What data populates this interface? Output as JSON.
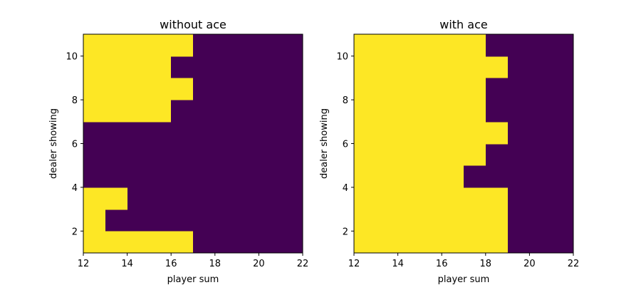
{
  "colors": {
    "stand": "#440154",
    "hit": "#fde725",
    "frame": "#000000",
    "background": "#ffffff"
  },
  "chart_data": [
    {
      "type": "heatmap",
      "title": "without ace",
      "xlabel": "player sum",
      "ylabel": "dealer showing",
      "xlim": [
        12,
        22
      ],
      "ylim": [
        1,
        11
      ],
      "xticks": [
        12,
        14,
        16,
        18,
        20,
        22
      ],
      "yticks": [
        2,
        4,
        6,
        8,
        10
      ],
      "x_bins": [
        12,
        13,
        14,
        15,
        16,
        17,
        18,
        19,
        20,
        21
      ],
      "y_bins": [
        1,
        2,
        3,
        4,
        5,
        6,
        7,
        8,
        9,
        10
      ],
      "value_note": "1 = yellow, 0 = purple; rows ordered by y_bins, columns by x_bins",
      "grid": false,
      "values": [
        [
          1,
          1,
          1,
          1,
          1,
          0,
          0,
          0,
          0,
          0
        ],
        [
          1,
          0,
          0,
          0,
          0,
          0,
          0,
          0,
          0,
          0
        ],
        [
          1,
          1,
          0,
          0,
          0,
          0,
          0,
          0,
          0,
          0
        ],
        [
          0,
          0,
          0,
          0,
          0,
          0,
          0,
          0,
          0,
          0
        ],
        [
          0,
          0,
          0,
          0,
          0,
          0,
          0,
          0,
          0,
          0
        ],
        [
          0,
          0,
          0,
          0,
          0,
          0,
          0,
          0,
          0,
          0
        ],
        [
          1,
          1,
          1,
          1,
          0,
          0,
          0,
          0,
          0,
          0
        ],
        [
          1,
          1,
          1,
          1,
          1,
          0,
          0,
          0,
          0,
          0
        ],
        [
          1,
          1,
          1,
          1,
          0,
          0,
          0,
          0,
          0,
          0
        ],
        [
          1,
          1,
          1,
          1,
          1,
          0,
          0,
          0,
          0,
          0
        ]
      ]
    },
    {
      "type": "heatmap",
      "title": "with ace",
      "xlabel": "player sum",
      "ylabel": "dealer showing",
      "xlim": [
        12,
        22
      ],
      "ylim": [
        1,
        11
      ],
      "xticks": [
        12,
        14,
        16,
        18,
        20,
        22
      ],
      "yticks": [
        2,
        4,
        6,
        8,
        10
      ],
      "x_bins": [
        12,
        13,
        14,
        15,
        16,
        17,
        18,
        19,
        20,
        21
      ],
      "y_bins": [
        1,
        2,
        3,
        4,
        5,
        6,
        7,
        8,
        9,
        10
      ],
      "value_note": "1 = yellow, 0 = purple; rows ordered by y_bins, columns by x_bins",
      "grid": false,
      "values": [
        [
          1,
          1,
          1,
          1,
          1,
          1,
          1,
          0,
          0,
          0
        ],
        [
          1,
          1,
          1,
          1,
          1,
          1,
          1,
          0,
          0,
          0
        ],
        [
          1,
          1,
          1,
          1,
          1,
          1,
          1,
          0,
          0,
          0
        ],
        [
          1,
          1,
          1,
          1,
          1,
          0,
          0,
          0,
          0,
          0
        ],
        [
          1,
          1,
          1,
          1,
          1,
          1,
          0,
          0,
          0,
          0
        ],
        [
          1,
          1,
          1,
          1,
          1,
          1,
          1,
          0,
          0,
          0
        ],
        [
          1,
          1,
          1,
          1,
          1,
          1,
          0,
          0,
          0,
          0
        ],
        [
          1,
          1,
          1,
          1,
          1,
          1,
          0,
          0,
          0,
          0
        ],
        [
          1,
          1,
          1,
          1,
          1,
          1,
          1,
          0,
          0,
          0
        ],
        [
          1,
          1,
          1,
          1,
          1,
          1,
          0,
          0,
          0,
          0
        ]
      ]
    }
  ]
}
